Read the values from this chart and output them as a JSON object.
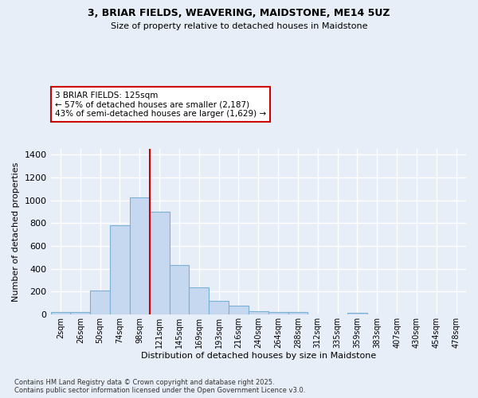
{
  "title1": "3, BRIAR FIELDS, WEAVERING, MAIDSTONE, ME14 5UZ",
  "title2": "Size of property relative to detached houses in Maidstone",
  "xlabel": "Distribution of detached houses by size in Maidstone",
  "ylabel": "Number of detached properties",
  "categories": [
    "2sqm",
    "26sqm",
    "50sqm",
    "74sqm",
    "98sqm",
    "121sqm",
    "145sqm",
    "169sqm",
    "193sqm",
    "216sqm",
    "240sqm",
    "264sqm",
    "288sqm",
    "312sqm",
    "335sqm",
    "359sqm",
    "383sqm",
    "407sqm",
    "430sqm",
    "454sqm",
    "478sqm"
  ],
  "values": [
    20,
    20,
    210,
    780,
    1025,
    900,
    430,
    240,
    120,
    75,
    25,
    22,
    20,
    0,
    0,
    10,
    0,
    0,
    0,
    0,
    0
  ],
  "bar_color": "#c5d8f0",
  "bar_edge_color": "#7bafd4",
  "vline_color": "#cc0000",
  "vline_x": 5,
  "annotation_text": "3 BRIAR FIELDS: 125sqm\n← 57% of detached houses are smaller (2,187)\n43% of semi-detached houses are larger (1,629) →",
  "annotation_box_facecolor": "#ffffff",
  "annotation_box_edgecolor": "#cc0000",
  "background_color": "#e8eef8",
  "grid_color": "#ffffff",
  "footnote": "Contains HM Land Registry data © Crown copyright and database right 2025.\nContains public sector information licensed under the Open Government Licence v3.0.",
  "ylim": [
    0,
    1450
  ],
  "yticks": [
    0,
    200,
    400,
    600,
    800,
    1000,
    1200,
    1400
  ]
}
